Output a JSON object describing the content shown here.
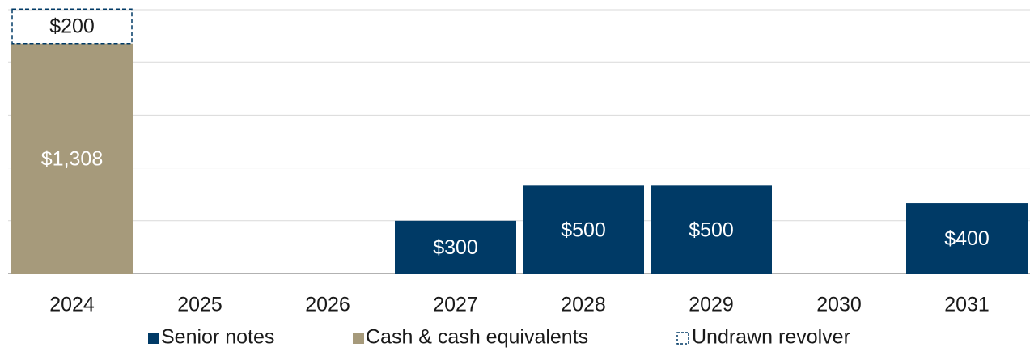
{
  "chart_data": {
    "type": "bar",
    "stacked": true,
    "categories": [
      "2024",
      "2025",
      "2026",
      "2027",
      "2028",
      "2029",
      "2030",
      "2031"
    ],
    "series": [
      {
        "name": "Senior notes",
        "color": "#003a66",
        "style": "solid",
        "values": [
          null,
          null,
          null,
          300,
          500,
          500,
          null,
          400
        ],
        "value_labels": [
          null,
          null,
          null,
          "$300",
          "$500",
          "$500",
          null,
          "$400"
        ]
      },
      {
        "name": "Cash & cash equivalents",
        "color": "#a69a7b",
        "style": "solid",
        "values": [
          1308,
          null,
          null,
          null,
          null,
          null,
          null,
          null
        ],
        "value_labels": [
          "$1,308",
          null,
          null,
          null,
          null,
          null,
          null,
          null
        ]
      },
      {
        "name": "Undrawn revolver",
        "color": "#003a66",
        "style": "dashed",
        "values": [
          200,
          null,
          null,
          null,
          null,
          null,
          null,
          null
        ],
        "value_labels": [
          "$200",
          null,
          null,
          null,
          null,
          null,
          null,
          null
        ]
      }
    ],
    "ylim": [
      0,
      1500
    ],
    "yticks": [
      0,
      300,
      600,
      900,
      1200,
      1500
    ],
    "grid": true,
    "legend": "bottom"
  }
}
